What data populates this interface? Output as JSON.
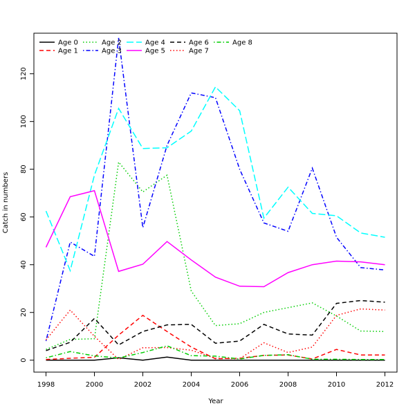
{
  "chart_data": {
    "type": "line",
    "title": "",
    "xlabel": "Year",
    "ylabel": "Catch in numbers",
    "xlim": [
      1997.5,
      2012.5
    ],
    "ylim": [
      -5,
      137
    ],
    "x_ticks": [
      1998,
      2000,
      2002,
      2004,
      2006,
      2008,
      2010,
      2012
    ],
    "y_ticks": [
      0,
      20,
      40,
      60,
      80,
      100,
      120
    ],
    "legend_position": "top-left",
    "x": [
      1998,
      1999,
      2000,
      2001,
      2002,
      2003,
      2004,
      2005,
      2006,
      2007,
      2008,
      2009,
      2010,
      2011,
      2012
    ],
    "series": [
      {
        "name": "Age 0",
        "color": "#000000",
        "dash": "solid",
        "values": [
          0.0,
          0.0,
          0.0,
          1.0,
          0.0,
          1.3,
          0.0,
          0.0,
          0.0,
          0.0,
          0.0,
          0.0,
          0.0,
          0.0,
          0.0
        ]
      },
      {
        "name": "Age 1",
        "color": "#ff0000",
        "dash": "dashed",
        "values": [
          0.3,
          0.8,
          1.2,
          10.5,
          18.8,
          12.0,
          5.5,
          0.6,
          0.8,
          2.0,
          2.2,
          0.5,
          4.5,
          2.2,
          2.2
        ]
      },
      {
        "name": "Age 2",
        "color": "#00cd00",
        "dash": "dotted",
        "values": [
          4.5,
          8.7,
          9.0,
          83.0,
          70.5,
          77.5,
          29.0,
          14.5,
          15.3,
          20.0,
          22.0,
          24.0,
          18.5,
          12.2,
          12.0
        ]
      },
      {
        "name": "Age 3",
        "color": "#0000ff",
        "dash": "dotdash",
        "values": [
          8.0,
          49.5,
          43.5,
          135.0,
          55.5,
          90.0,
          112.0,
          110.0,
          80.0,
          57.5,
          54.0,
          80.5,
          51.5,
          38.8,
          37.8
        ]
      },
      {
        "name": "Age 4",
        "color": "#00ffff",
        "dash": "longdash",
        "values": [
          62.5,
          37.5,
          77.5,
          105.5,
          88.7,
          89.0,
          96.0,
          114.5,
          104.5,
          59.5,
          72.5,
          61.5,
          60.5,
          53.3,
          51.5
        ]
      },
      {
        "name": "Age 5",
        "color": "#ff00ff",
        "dash": "solid",
        "values": [
          47.3,
          68.5,
          71.0,
          37.2,
          40.2,
          49.7,
          42.0,
          34.8,
          31.0,
          30.8,
          36.7,
          40.0,
          41.5,
          41.2,
          40.0
        ]
      },
      {
        "name": "Age 6",
        "color": "#000000",
        "dash": "dashed",
        "values": [
          4.0,
          7.5,
          17.5,
          6.4,
          12.0,
          14.8,
          15.0,
          7.1,
          8.0,
          15.0,
          11.0,
          10.5,
          23.8,
          25.0,
          24.3
        ]
      },
      {
        "name": "Age 7",
        "color": "#ff0000",
        "dash": "dotted",
        "values": [
          8.5,
          21.0,
          10.0,
          0.3,
          5.2,
          5.3,
          4.2,
          0.8,
          0.6,
          7.3,
          3.2,
          5.5,
          18.8,
          21.5,
          21.0
        ]
      },
      {
        "name": "Age 8",
        "color": "#00cd00",
        "dash": "dotdash",
        "values": [
          1.0,
          3.6,
          1.8,
          0.9,
          3.2,
          6.0,
          1.9,
          1.7,
          0.5,
          2.0,
          2.3,
          0.4,
          0.4,
          0.3,
          0.3
        ]
      }
    ]
  }
}
